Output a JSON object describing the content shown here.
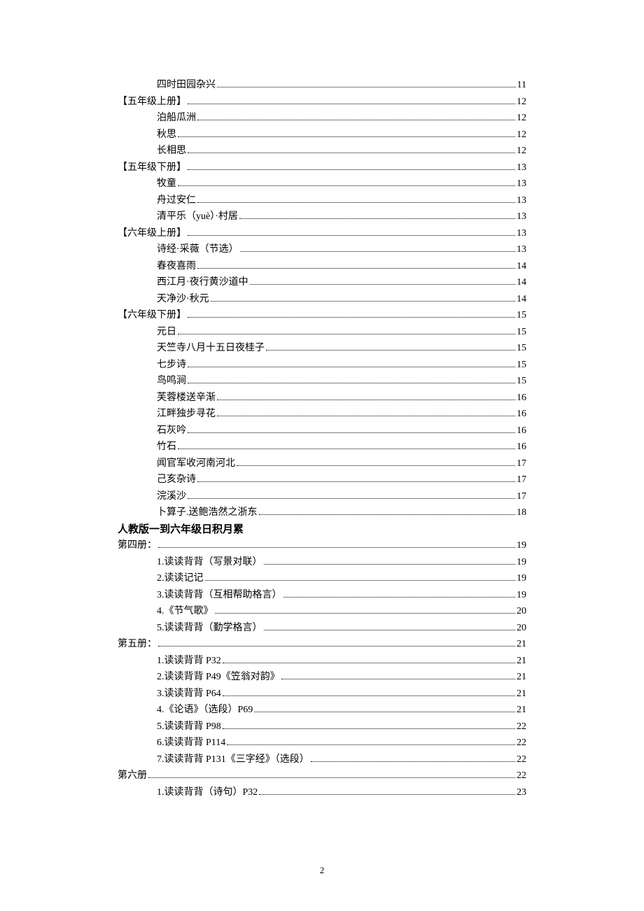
{
  "toc": [
    {
      "level": 2,
      "label": "四时田园杂兴",
      "page": "11"
    },
    {
      "level": 1,
      "label": "【五年级上册】",
      "page": "12"
    },
    {
      "level": 2,
      "label": "泊船瓜洲",
      "page": "12"
    },
    {
      "level": 2,
      "label": "秋思",
      "page": "12"
    },
    {
      "level": 2,
      "label": "长相思",
      "page": "12"
    },
    {
      "level": 1,
      "label": "【五年级下册】",
      "page": "13"
    },
    {
      "level": 2,
      "label": "牧童",
      "page": "13"
    },
    {
      "level": 2,
      "label": "舟过安仁",
      "page": "13"
    },
    {
      "level": 2,
      "label": "清平乐（yuè）·村居",
      "page": "13"
    },
    {
      "level": 1,
      "label": "【六年级上册】",
      "page": "13"
    },
    {
      "level": 2,
      "label": "诗经·采薇（节选）",
      "page": "13"
    },
    {
      "level": 2,
      "label": "春夜喜雨",
      "page": "14"
    },
    {
      "level": 2,
      "label": "西江月·夜行黄沙道中",
      "page": "14"
    },
    {
      "level": 2,
      "label": "天净沙·秋元",
      "page": "14"
    },
    {
      "level": 1,
      "label": "【六年级下册】",
      "page": "15"
    },
    {
      "level": 2,
      "label": "元日",
      "page": "15"
    },
    {
      "level": 2,
      "label": "天竺寺八月十五日夜桂子",
      "page": "15"
    },
    {
      "level": 2,
      "label": "七步诗",
      "page": "15"
    },
    {
      "level": 2,
      "label": "鸟鸣涧",
      "page": "15"
    },
    {
      "level": 2,
      "label": "芙蓉楼送辛渐",
      "page": "16"
    },
    {
      "level": 2,
      "label": "江畔独步寻花",
      "page": "16"
    },
    {
      "level": 2,
      "label": "石灰吟",
      "page": "16"
    },
    {
      "level": 2,
      "label": "竹石",
      "page": "16"
    },
    {
      "level": 2,
      "label": "闻官军收河南河北",
      "page": "17"
    },
    {
      "level": 2,
      "label": "己亥杂诗",
      "page": "17"
    },
    {
      "level": 2,
      "label": "浣溪沙",
      "page": "17"
    },
    {
      "level": 2,
      "label": "卜算子.送鲍浩然之浙东",
      "page": "18"
    }
  ],
  "heading": "人教版一到六年级日积月累",
  "toc2": [
    {
      "level": 1,
      "label": "第四册：",
      "page": "19"
    },
    {
      "level": 2,
      "label": "1.读读背背（写景对联）",
      "page": "19"
    },
    {
      "level": 2,
      "label": "2.读读记记",
      "page": "19"
    },
    {
      "level": 2,
      "label": "3.读读背背（互相帮助格言）",
      "page": "19"
    },
    {
      "level": 2,
      "label": "4.《节气歌》",
      "page": "20"
    },
    {
      "level": 2,
      "label": "5.读读背背（勤学格言）",
      "page": "20"
    },
    {
      "level": 1,
      "label": "第五册：",
      "page": "21"
    },
    {
      "level": 2,
      "label": "1.读读背背 P32",
      "page": "21"
    },
    {
      "level": 2,
      "label": "2.读读背背 P49《笠翁对韵》",
      "page": "21"
    },
    {
      "level": 2,
      "label": "3.读读背背 P64",
      "page": "21"
    },
    {
      "level": 2,
      "label": "4.《论语》（选段）P69",
      "page": "21"
    },
    {
      "level": 2,
      "label": "5.读读背背 P98",
      "page": "22"
    },
    {
      "level": 2,
      "label": "6.读读背背 P114",
      "page": "22"
    },
    {
      "level": 2,
      "label": "7.读读背背 P131《三字经》（选段）",
      "page": "22"
    },
    {
      "level": 1,
      "label": "第六册",
      "page": "22"
    },
    {
      "level": 2,
      "label": "1.读读背背（诗句）P32",
      "page": "23"
    }
  ],
  "pageNumber": "2"
}
